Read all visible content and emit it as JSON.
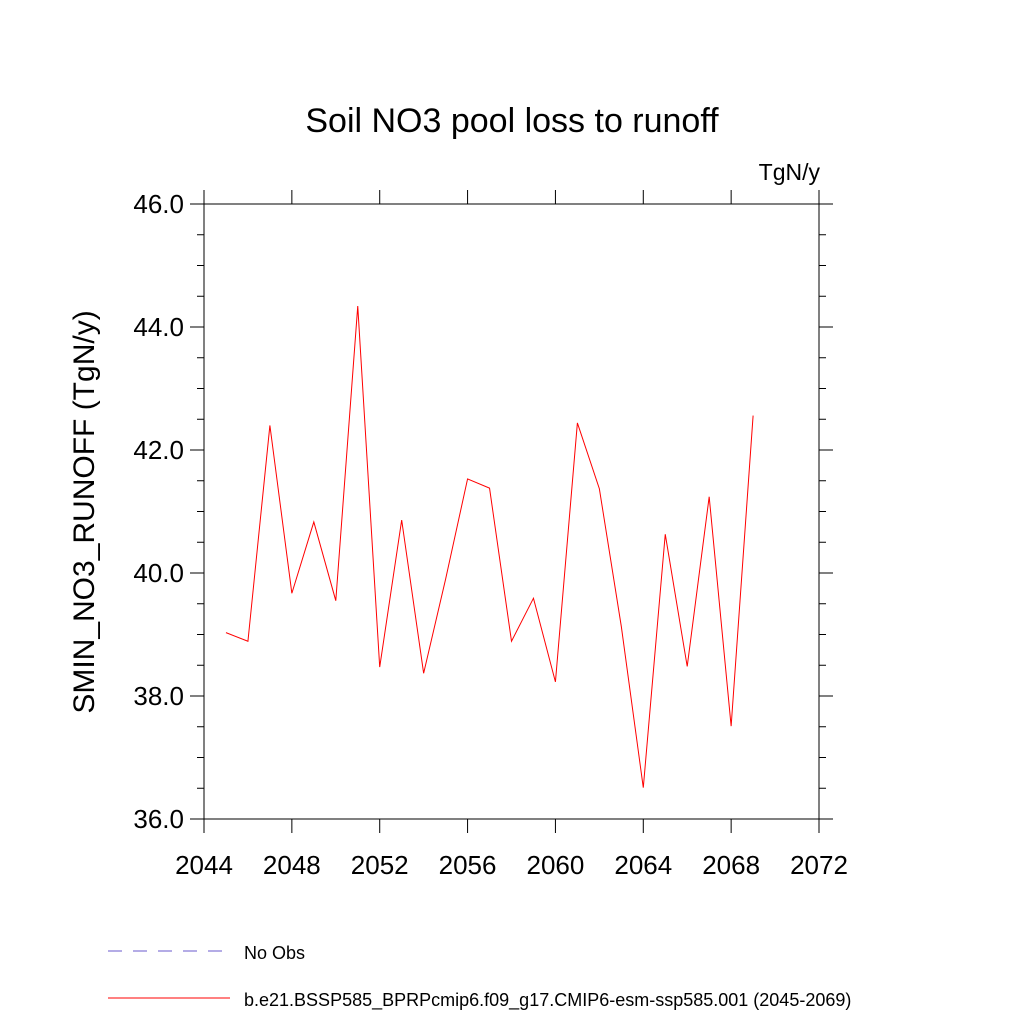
{
  "chart_data": {
    "type": "line",
    "title": "Soil NO3 pool loss to runoff",
    "units": "TgN/y",
    "ylabel": "SMIN_NO3_RUNOFF  (TgN/y)",
    "xlabel": "",
    "xlim": [
      2044,
      2072
    ],
    "ylim": [
      36.0,
      46.0
    ],
    "x_ticks": [
      "2044",
      "2048",
      "2052",
      "2056",
      "2060",
      "2064",
      "2068",
      "2072"
    ],
    "y_ticks": [
      "36.0",
      "38.0",
      "40.0",
      "42.0",
      "44.0",
      "46.0"
    ],
    "grid": false,
    "legend_position": "bottom",
    "series": [
      {
        "name": "No Obs",
        "color": "#6a5acd",
        "dash": "dashed",
        "x": [],
        "values": []
      },
      {
        "name": "b.e21.BSSP585_BPRPcmip6.f09_g17.CMIP6-esm-ssp585.001 (2045-2069)",
        "color": "#ff0000",
        "dash": "solid",
        "x": [
          2045,
          2046,
          2047,
          2048,
          2049,
          2050,
          2051,
          2052,
          2053,
          2054,
          2055,
          2056,
          2057,
          2058,
          2059,
          2060,
          2061,
          2062,
          2063,
          2064,
          2065,
          2066,
          2067,
          2068,
          2069
        ],
        "values": [
          39.03,
          38.89,
          42.4,
          39.67,
          40.83,
          39.55,
          44.34,
          38.47,
          40.86,
          38.37,
          39.9,
          41.53,
          41.38,
          38.89,
          39.59,
          38.23,
          42.44,
          41.37,
          39.13,
          36.51,
          40.63,
          38.48,
          41.24,
          37.51,
          42.56
        ]
      }
    ]
  }
}
